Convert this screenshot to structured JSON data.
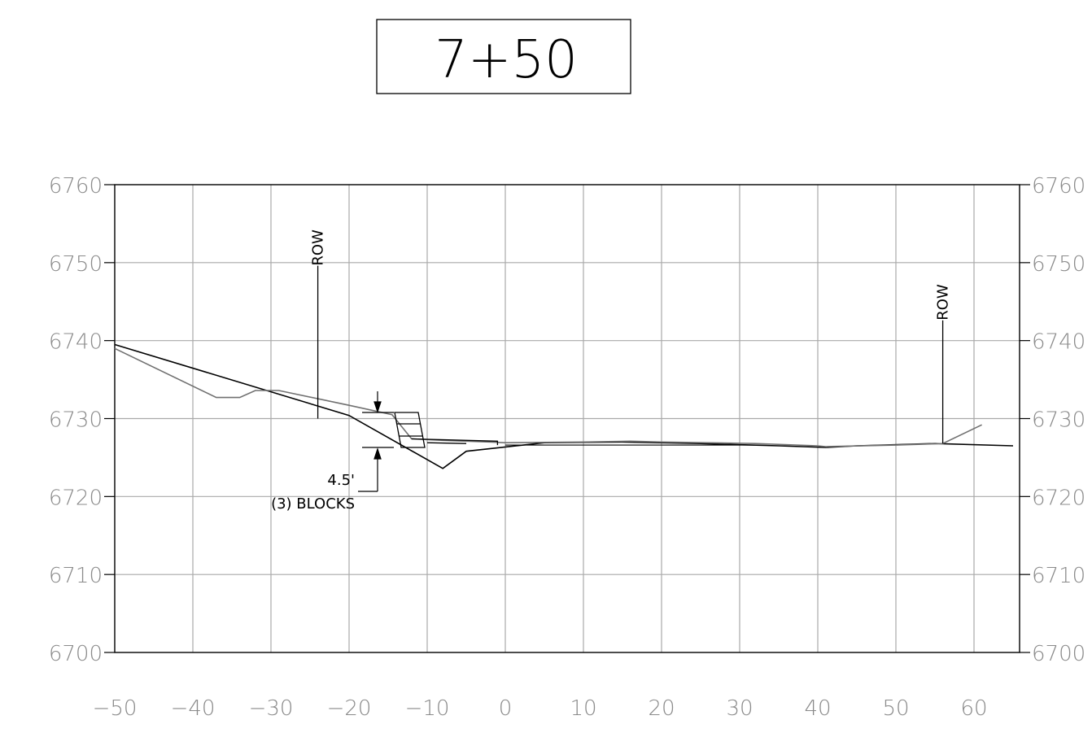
{
  "station_label": "7+50",
  "chart_data": {
    "type": "cross-section",
    "title": "7+50",
    "x_ticks": [
      "−50",
      "−40",
      "−30",
      "−20",
      "−10",
      "0",
      "10",
      "20",
      "30",
      "40",
      "50",
      "60"
    ],
    "y_ticks_left": [
      "6760",
      "6750",
      "6740",
      "6730",
      "6720",
      "6710",
      "6700"
    ],
    "y_ticks_right": [
      "6760",
      "6750",
      "6740",
      "6730",
      "6720",
      "6710",
      "6700"
    ],
    "xlim": [
      -50,
      65
    ],
    "ylim": [
      6700,
      6760
    ],
    "grid": true,
    "series": [
      {
        "role": "existing ground",
        "color": "#000000",
        "x": [
          -50,
          -20,
          -8,
          -5,
          5,
          15,
          25,
          35,
          41,
          45,
          55,
          65
        ],
        "y": [
          6739.5,
          6730.4,
          6723.6,
          6725.8,
          6726.9,
          6727.0,
          6726.8,
          6726.5,
          6726.3,
          6726.5,
          6726.8,
          6726.5
        ]
      },
      {
        "role": "proposed grade",
        "color": "#707070",
        "x": [
          -50,
          -37,
          -34,
          -32,
          -29,
          -20,
          -14.5,
          -12,
          -8,
          -2,
          0,
          10,
          16,
          20,
          32,
          40,
          41,
          50,
          56,
          61
        ],
        "y": [
          6739.0,
          6732.7,
          6732.7,
          6733.6,
          6733.6,
          6731.7,
          6730.5,
          6727.4,
          6727.2,
          6727.0,
          6726.9,
          6727.0,
          6727.1,
          6727.0,
          6726.8,
          6726.5,
          6726.4,
          6726.6,
          6726.8,
          6729.2
        ]
      }
    ],
    "annotations": [
      {
        "text": "ROW",
        "x": -24,
        "y_top": 6749.6,
        "y_bottom": 6730.0
      },
      {
        "text": "ROW",
        "x": 56,
        "y_top": 6742.6,
        "y_bottom": 6726.8
      },
      {
        "text": "4.5'",
        "x": -16
      },
      {
        "text": "(3) BLOCKS",
        "x": -16
      }
    ]
  }
}
